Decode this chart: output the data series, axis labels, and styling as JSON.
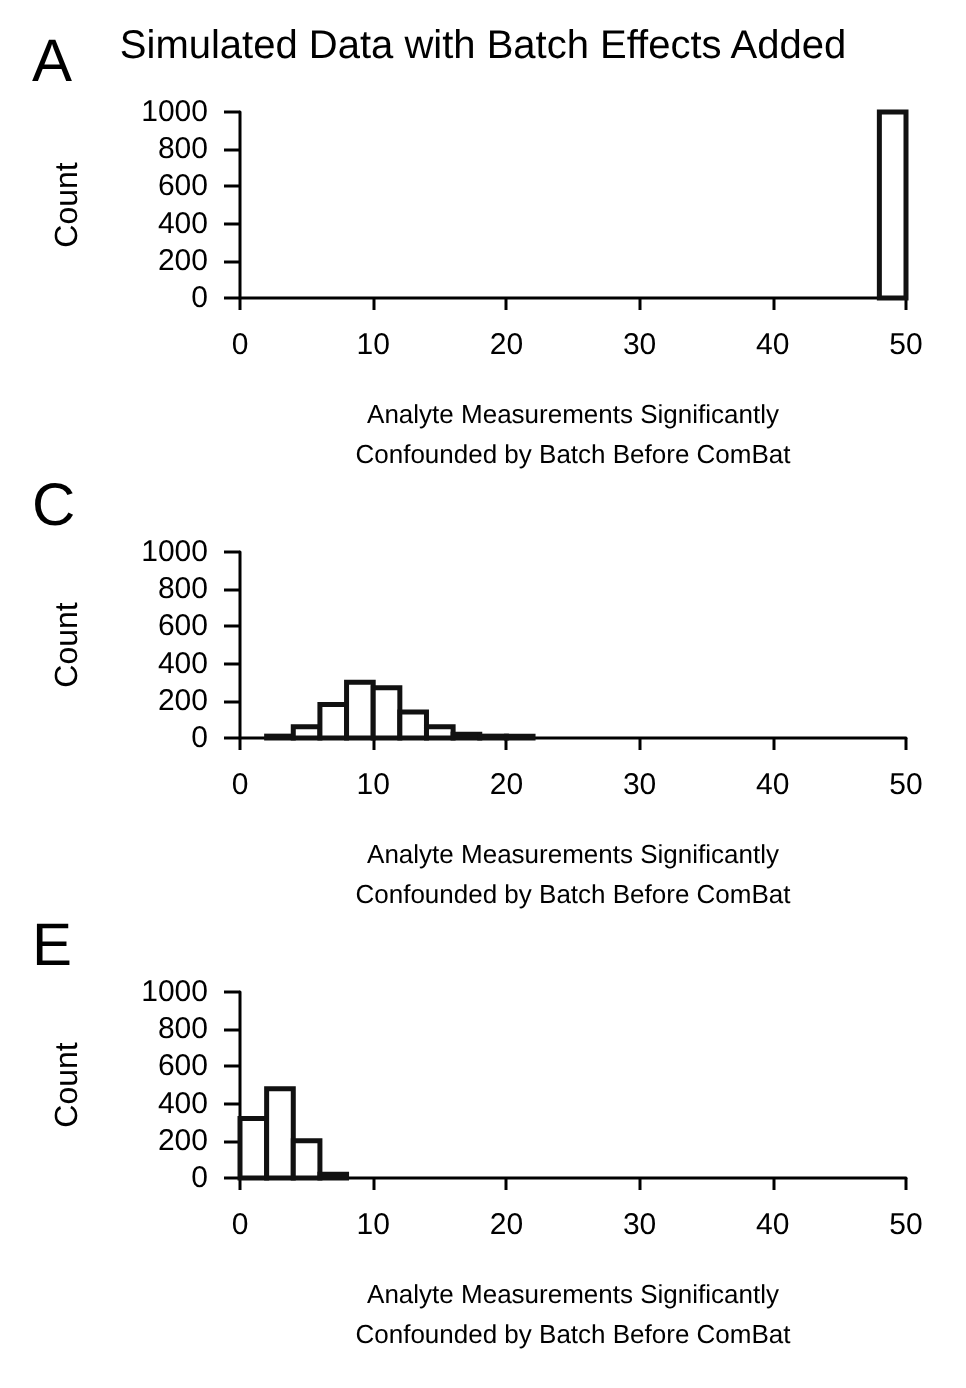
{
  "chart_data": [
    {
      "type": "histogram",
      "title": "Simulated Data with Batch Effects Added",
      "annotations": [
        "A"
      ],
      "xlabel": "Analyte Measurements Significantly\nConfounded by Batch Before ComBat",
      "ylabel": "Count",
      "bins": [
        48,
        50
      ],
      "values": [
        1000
      ],
      "color": "#ffffff",
      "xlim": [
        0,
        50
      ],
      "xticks": [
        0,
        10,
        20,
        30,
        40,
        50
      ],
      "ylim": [
        0,
        1000
      ],
      "yticks": [
        0,
        200,
        400,
        600,
        800,
        1000
      ],
      "grid": false
    },
    {
      "type": "histogram",
      "annotations": [
        "C"
      ],
      "xlabel": "Analyte Measurements Significantly\nConfounded by Batch Before ComBat",
      "ylabel": "Count",
      "bins": [
        2,
        4,
        6,
        8,
        10,
        12,
        14,
        16,
        18,
        20,
        22
      ],
      "values": [
        10,
        60,
        180,
        300,
        270,
        140,
        60,
        20,
        10,
        10
      ],
      "color": "#ffffff",
      "xlim": [
        0,
        50
      ],
      "xticks": [
        0,
        10,
        20,
        30,
        40,
        50
      ],
      "ylim": [
        0,
        1000
      ],
      "yticks": [
        0,
        200,
        400,
        600,
        800,
        1000
      ],
      "grid": false
    },
    {
      "type": "histogram",
      "annotations": [
        "E"
      ],
      "xlabel": "Analyte Measurements Significantly\nConfounded by Batch Before ComBat",
      "ylabel": "Count",
      "bins": [
        0,
        2,
        4,
        6,
        8
      ],
      "values": [
        320,
        480,
        200,
        20
      ],
      "color": "#ffffff",
      "xlim": [
        0,
        50
      ],
      "xticks": [
        0,
        10,
        20,
        30,
        40,
        50
      ],
      "ylim": [
        0,
        1000
      ],
      "yticks": [
        0,
        200,
        400,
        600,
        800,
        1000
      ],
      "grid": false
    }
  ]
}
